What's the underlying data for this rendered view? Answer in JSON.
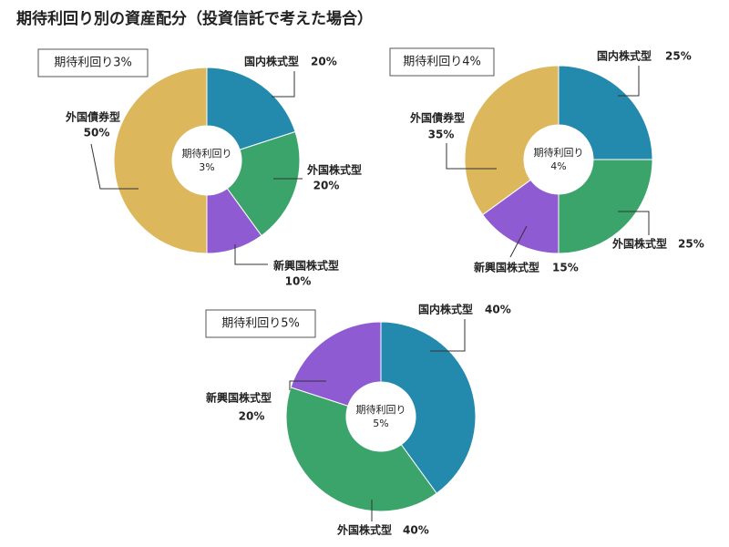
{
  "title": "期待利回り別の資産配分（投資信託で考えた場合）",
  "chart_data": [
    {
      "type": "pie",
      "box_label": "期待利回り3%",
      "center_label": [
        "期待利回り",
        "3%"
      ],
      "categories": [
        "国内株式型",
        "外国株式型",
        "新興国株式型",
        "外国債券型"
      ],
      "values": [
        20,
        20,
        10,
        50
      ],
      "value_labels": [
        "20%",
        "20%",
        "10%",
        "50%"
      ],
      "colors": [
        "#2389ad",
        "#3ba46b",
        "#8e5bd2",
        "#ddb75b"
      ]
    },
    {
      "type": "pie",
      "box_label": "期待利回り4%",
      "center_label": [
        "期待利回り",
        "4%"
      ],
      "categories": [
        "国内株式型",
        "外国株式型",
        "新興国株式型",
        "外国債券型"
      ],
      "values": [
        25,
        25,
        15,
        35
      ],
      "value_labels": [
        "25%",
        "25%",
        "15%",
        "35%"
      ],
      "colors": [
        "#2389ad",
        "#3ba46b",
        "#8e5bd2",
        "#ddb75b"
      ]
    },
    {
      "type": "pie",
      "box_label": "期待利回り5%",
      "center_label": [
        "期待利回り",
        "5%"
      ],
      "categories": [
        "国内株式型",
        "外国株式型",
        "新興国株式型"
      ],
      "values": [
        40,
        40,
        20
      ],
      "value_labels": [
        "40%",
        "40%",
        "20%"
      ],
      "colors": [
        "#2389ad",
        "#3ba46b",
        "#8e5bd2"
      ]
    }
  ]
}
